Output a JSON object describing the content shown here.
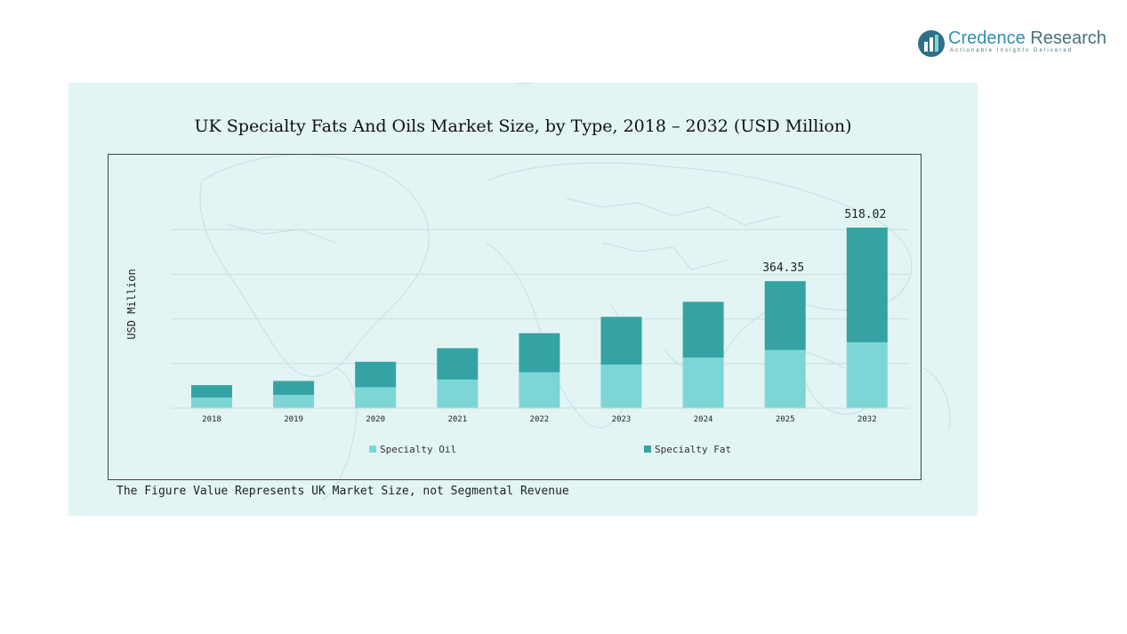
{
  "brand": {
    "name_part1": "Credence",
    "name_part2": "Research",
    "tagline": "Actionable Insights Delivered"
  },
  "footnote": "The Figure Value Represents UK Market Size, not Segmental Revenue",
  "colors": {
    "specialty_oil": "#7dd6d6",
    "specialty_fat": "#35a3a3",
    "panel": "#e3f4f4",
    "grid": "#c9dfe0"
  },
  "chart_data": {
    "type": "bar",
    "stacked": true,
    "title": "UK Specialty Fats And Oils Market Size, by Type, 2018 – 2032 (USD Million)",
    "ylabel": "USD Million",
    "xlabel": "",
    "categories": [
      "2018",
      "2019",
      "2020",
      "2021",
      "2022",
      "2023",
      "2024",
      "2025",
      "2032"
    ],
    "series": [
      {
        "name": "Specialty Oil",
        "values": [
          30,
          38,
          60,
          82,
          103,
          125,
          145,
          167,
          189
        ]
      },
      {
        "name": "Specialty Fat",
        "values": [
          36,
          40,
          73,
          90,
          112,
          137,
          160,
          197.35,
          329.02
        ]
      }
    ],
    "data_labels": {
      "2025": "364.35",
      "2032": "518.02"
    },
    "ylim": [
      0,
      560
    ],
    "grid": true,
    "legend_position": "bottom"
  }
}
